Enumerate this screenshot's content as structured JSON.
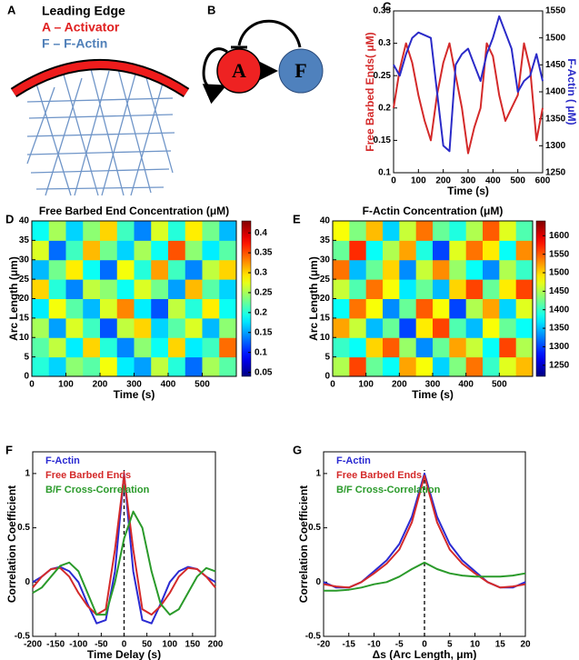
{
  "panel_labels": [
    "A",
    "B",
    "C",
    "D",
    "E",
    "F",
    "G"
  ],
  "diagram_a": {
    "title": "Leading Edge",
    "activator": "A – Activator",
    "actin": "F – F-Actin"
  },
  "diagram_b": {
    "activator": "A",
    "actin": "F"
  },
  "chart_data": [
    {
      "type": "line",
      "xlabel": "Time (s)",
      "ylabel": "Free Barbed Ends( μM)",
      "y2label": "F-Actin ( μM)",
      "x": [
        0,
        25,
        50,
        75,
        100,
        125,
        150,
        175,
        200,
        225,
        250,
        275,
        300,
        325,
        350,
        375,
        400,
        425,
        450,
        475,
        500,
        525,
        550,
        575,
        600
      ],
      "xlim": [
        0,
        600
      ],
      "xticks": [
        0,
        100,
        200,
        300,
        400,
        500,
        600
      ],
      "ylim": [
        0.1,
        0.35
      ],
      "yticks": [
        0.1,
        0.15,
        0.2,
        0.25,
        0.3,
        0.35
      ],
      "y2lim": [
        1250,
        1550
      ],
      "y2ticks": [
        1250,
        1300,
        1350,
        1400,
        1450,
        1500,
        1550
      ],
      "series": [
        {
          "color": "#d42a2a",
          "values": [
            0.2,
            0.26,
            0.3,
            0.27,
            0.22,
            0.18,
            0.15,
            0.22,
            0.27,
            0.3,
            0.25,
            0.2,
            0.13,
            0.17,
            0.2,
            0.3,
            0.28,
            0.22,
            0.18,
            0.2,
            0.22,
            0.3,
            0.26,
            0.15,
            0.2
          ]
        },
        {
          "color": "#2a2ac8",
          "axis": "y2",
          "values": [
            1450,
            1430,
            1470,
            1500,
            1510,
            1505,
            1500,
            1400,
            1300,
            1290,
            1450,
            1470,
            1480,
            1450,
            1420,
            1470,
            1500,
            1540,
            1510,
            1480,
            1400,
            1420,
            1430,
            1470,
            1420
          ]
        }
      ]
    },
    {
      "type": "heatmap",
      "title": "Free Barbed End Concentration (μM)",
      "xlabel": "Time (s)",
      "ylabel": "Arc Length (μm)",
      "xlim": [
        0,
        600
      ],
      "xticks": [
        0,
        100,
        200,
        300,
        400,
        500
      ],
      "ylim": [
        0,
        40
      ],
      "yticks": [
        0,
        5,
        10,
        15,
        20,
        25,
        30,
        35,
        40
      ],
      "colormap": "jet",
      "clim": [
        0.04,
        0.43
      ],
      "cticks": [
        0.05,
        0.1,
        0.15,
        0.2,
        0.25,
        0.3,
        0.35,
        0.4
      ],
      "z": [
        [
          0.2,
          0.17,
          0.24,
          0.22,
          0.28,
          0.18,
          0.15,
          0.26,
          0.2,
          0.13,
          0.25,
          0.22
        ],
        [
          0.22,
          0.26,
          0.18,
          0.3,
          0.2,
          0.14,
          0.24,
          0.19,
          0.3,
          0.18,
          0.21,
          0.34
        ],
        [
          0.25,
          0.15,
          0.27,
          0.21,
          0.12,
          0.26,
          0.3,
          0.17,
          0.22,
          0.27,
          0.16,
          0.24
        ],
        [
          0.18,
          0.28,
          0.22,
          0.16,
          0.27,
          0.33,
          0.18,
          0.12,
          0.26,
          0.2,
          0.29,
          0.19
        ],
        [
          0.3,
          0.2,
          0.14,
          0.26,
          0.24,
          0.19,
          0.27,
          0.23,
          0.15,
          0.31,
          0.22,
          0.17
        ],
        [
          0.16,
          0.23,
          0.29,
          0.19,
          0.13,
          0.28,
          0.2,
          0.32,
          0.21,
          0.14,
          0.26,
          0.3
        ],
        [
          0.27,
          0.13,
          0.21,
          0.31,
          0.23,
          0.17,
          0.25,
          0.19,
          0.35,
          0.24,
          0.18,
          0.22
        ],
        [
          0.19,
          0.25,
          0.17,
          0.24,
          0.3,
          0.21,
          0.14,
          0.27,
          0.2,
          0.29,
          0.23,
          0.16
        ]
      ]
    },
    {
      "type": "heatmap",
      "title": "F-Actin Concentration (μM)",
      "xlabel": "Time (s)",
      "ylabel": "Arc Length (μm)",
      "xlim": [
        0,
        600
      ],
      "xticks": [
        0,
        100,
        200,
        300,
        400,
        500
      ],
      "ylim": [
        0,
        40
      ],
      "yticks": [
        0,
        5,
        10,
        15,
        20,
        25,
        30,
        35,
        40
      ],
      "colormap": "jet",
      "clim": [
        1220,
        1640
      ],
      "cticks": [
        1250,
        1300,
        1350,
        1400,
        1450,
        1500,
        1550,
        1600
      ],
      "z": [
        [
          1450,
          1560,
          1420,
          1380,
          1520,
          1480,
          1360,
          1430,
          1540,
          1400,
          1470,
          1510
        ],
        [
          1400,
          1380,
          1500,
          1550,
          1440,
          1330,
          1420,
          1520,
          1460,
          1380,
          1560,
          1450
        ],
        [
          1520,
          1460,
          1350,
          1420,
          1300,
          1490,
          1560,
          1410,
          1350,
          1480,
          1420,
          1380
        ],
        [
          1380,
          1540,
          1480,
          1330,
          1420,
          1550,
          1480,
          1300,
          1450,
          1520,
          1360,
          1470
        ],
        [
          1460,
          1410,
          1540,
          1480,
          1370,
          1420,
          1350,
          1500,
          1560,
          1420,
          1490,
          1560
        ],
        [
          1540,
          1350,
          1420,
          1500,
          1330,
          1460,
          1530,
          1440,
          1380,
          1330,
          1450,
          1400
        ],
        [
          1420,
          1570,
          1380,
          1450,
          1520,
          1390,
          1300,
          1470,
          1540,
          1490,
          1380,
          1530
        ],
        [
          1480,
          1430,
          1510,
          1360,
          1460,
          1540,
          1420,
          1390,
          1450,
          1550,
          1470,
          1410
        ]
      ]
    },
    {
      "type": "line",
      "xlabel": "Time Delay (s)",
      "ylabel": "Correlation Coefficient",
      "x": [
        -200,
        -180,
        -160,
        -140,
        -120,
        -100,
        -80,
        -60,
        -40,
        -20,
        0,
        20,
        40,
        60,
        80,
        100,
        120,
        140,
        160,
        180,
        200
      ],
      "xlim": [
        -200,
        200
      ],
      "xticks": [
        -200,
        -150,
        -100,
        -50,
        0,
        50,
        100,
        150,
        200
      ],
      "ylim": [
        -0.5,
        1.2
      ],
      "yticks": [
        -0.5,
        0,
        0.5,
        1
      ],
      "zero_line": true,
      "series": [
        {
          "name": "F-Actin",
          "color": "#2a2ad2",
          "values": [
            0.0,
            0.05,
            0.12,
            0.14,
            0.1,
            0.0,
            -0.2,
            -0.38,
            -0.35,
            0.1,
            1.0,
            0.1,
            -0.35,
            -0.38,
            -0.2,
            0.0,
            0.1,
            0.14,
            0.12,
            0.05,
            0.0
          ]
        },
        {
          "name": "Free Barbed Ends",
          "color": "#d42a2a",
          "values": [
            -0.05,
            0.05,
            0.12,
            0.13,
            0.05,
            -0.1,
            -0.22,
            -0.3,
            -0.25,
            0.3,
            0.98,
            0.3,
            -0.25,
            -0.3,
            -0.22,
            -0.1,
            0.05,
            0.13,
            0.12,
            0.05,
            -0.05
          ]
        },
        {
          "name": "B/F Cross-Correlation",
          "color": "#2a9a2a",
          "values": [
            -0.1,
            -0.05,
            0.05,
            0.15,
            0.18,
            0.1,
            -0.1,
            -0.3,
            -0.3,
            0.0,
            0.4,
            0.65,
            0.5,
            0.1,
            -0.2,
            -0.3,
            -0.25,
            -0.1,
            0.05,
            0.13,
            0.1
          ]
        }
      ]
    },
    {
      "type": "line",
      "xlabel": "Δs (Arc Length, μm)",
      "ylabel": "Correlation Coefficient",
      "x": [
        -20,
        -17.5,
        -15,
        -12.5,
        -10,
        -7.5,
        -5,
        -2.5,
        0,
        2.5,
        5,
        7.5,
        10,
        12.5,
        15,
        17.5,
        20
      ],
      "xlim": [
        -20,
        20
      ],
      "xticks": [
        -20,
        -15,
        -10,
        -5,
        0,
        5,
        10,
        15,
        20
      ],
      "ylim": [
        -0.5,
        1.2
      ],
      "yticks": [
        -0.5,
        0,
        0.5,
        1
      ],
      "zero_line": true,
      "series": [
        {
          "name": "F-Actin",
          "color": "#2a2ad2",
          "values": [
            0.0,
            -0.05,
            -0.05,
            0.0,
            0.1,
            0.2,
            0.35,
            0.6,
            1.0,
            0.6,
            0.35,
            0.2,
            0.1,
            0.0,
            -0.05,
            -0.05,
            0.0
          ]
        },
        {
          "name": "Free Barbed Ends",
          "color": "#d42a2a",
          "values": [
            -0.02,
            -0.04,
            -0.05,
            0.0,
            0.08,
            0.17,
            0.3,
            0.55,
            0.98,
            0.55,
            0.3,
            0.17,
            0.08,
            0.0,
            -0.05,
            -0.04,
            -0.02
          ]
        },
        {
          "name": "B/F Cross-Correlation",
          "color": "#2a9a2a",
          "values": [
            -0.08,
            -0.08,
            -0.07,
            -0.05,
            -0.02,
            0.0,
            0.05,
            0.12,
            0.18,
            0.12,
            0.08,
            0.06,
            0.05,
            0.05,
            0.05,
            0.06,
            0.08
          ]
        }
      ]
    }
  ]
}
